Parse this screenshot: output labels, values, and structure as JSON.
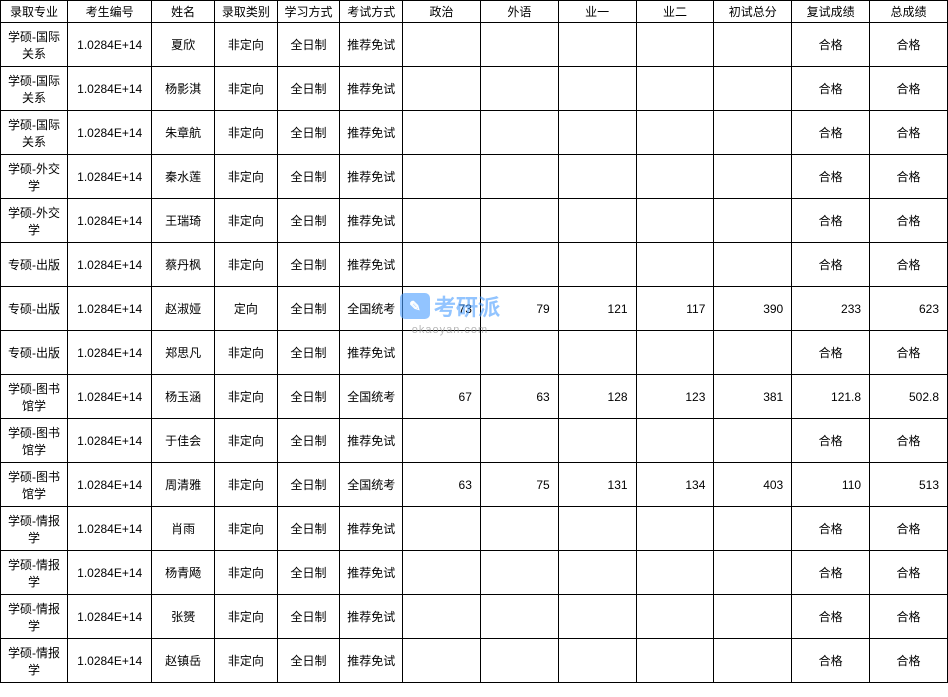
{
  "watermark": {
    "brand": "考研派",
    "url": "okaoyan.com"
  },
  "table": {
    "headers": [
      "录取专业",
      "考生编号",
      "姓名",
      "录取类别",
      "学习方式",
      "考试方式",
      "政治",
      "外语",
      "业一",
      "业二",
      "初试总分",
      "复试成绩",
      "总成绩"
    ],
    "rows": [
      {
        "major": "学硕-国际关系",
        "id": "1.0284E+14",
        "name": "夏欣",
        "category": "非定向",
        "study": "全日制",
        "exam": "推荐免试",
        "politics": "",
        "foreign": "",
        "sub1": "",
        "sub2": "",
        "initial": "",
        "retest": "合格",
        "total": "合格"
      },
      {
        "major": "学硕-国际关系",
        "id": "1.0284E+14",
        "name": "杨影淇",
        "category": "非定向",
        "study": "全日制",
        "exam": "推荐免试",
        "politics": "",
        "foreign": "",
        "sub1": "",
        "sub2": "",
        "initial": "",
        "retest": "合格",
        "total": "合格"
      },
      {
        "major": "学硕-国际关系",
        "id": "1.0284E+14",
        "name": "朱章航",
        "category": "非定向",
        "study": "全日制",
        "exam": "推荐免试",
        "politics": "",
        "foreign": "",
        "sub1": "",
        "sub2": "",
        "initial": "",
        "retest": "合格",
        "total": "合格"
      },
      {
        "major": "学硕-外交学",
        "id": "1.0284E+14",
        "name": "秦水莲",
        "category": "非定向",
        "study": "全日制",
        "exam": "推荐免试",
        "politics": "",
        "foreign": "",
        "sub1": "",
        "sub2": "",
        "initial": "",
        "retest": "合格",
        "total": "合格"
      },
      {
        "major": "学硕-外交学",
        "id": "1.0284E+14",
        "name": "王瑞琦",
        "category": "非定向",
        "study": "全日制",
        "exam": "推荐免试",
        "politics": "",
        "foreign": "",
        "sub1": "",
        "sub2": "",
        "initial": "",
        "retest": "合格",
        "total": "合格"
      },
      {
        "major": "专硕-出版",
        "id": "1.0284E+14",
        "name": "蔡丹枫",
        "category": "非定向",
        "study": "全日制",
        "exam": "推荐免试",
        "politics": "",
        "foreign": "",
        "sub1": "",
        "sub2": "",
        "initial": "",
        "retest": "合格",
        "total": "合格"
      },
      {
        "major": "专硕-出版",
        "id": "1.0284E+14",
        "name": "赵淑娅",
        "category": "定向",
        "study": "全日制",
        "exam": "全国统考",
        "politics": "73",
        "foreign": "79",
        "sub1": "121",
        "sub2": "117",
        "initial": "390",
        "retest": "233",
        "total": "623"
      },
      {
        "major": "专硕-出版",
        "id": "1.0284E+14",
        "name": "郑思凡",
        "category": "非定向",
        "study": "全日制",
        "exam": "推荐免试",
        "politics": "",
        "foreign": "",
        "sub1": "",
        "sub2": "",
        "initial": "",
        "retest": "合格",
        "total": "合格"
      },
      {
        "major": "学硕-图书馆学",
        "id": "1.0284E+14",
        "name": "杨玉涵",
        "category": "非定向",
        "study": "全日制",
        "exam": "全国统考",
        "politics": "67",
        "foreign": "63",
        "sub1": "128",
        "sub2": "123",
        "initial": "381",
        "retest": "121.8",
        "total": "502.8"
      },
      {
        "major": "学硕-图书馆学",
        "id": "1.0284E+14",
        "name": "于佳会",
        "category": "非定向",
        "study": "全日制",
        "exam": "推荐免试",
        "politics": "",
        "foreign": "",
        "sub1": "",
        "sub2": "",
        "initial": "",
        "retest": "合格",
        "total": "合格"
      },
      {
        "major": "学硕-图书馆学",
        "id": "1.0284E+14",
        "name": "周清雅",
        "category": "非定向",
        "study": "全日制",
        "exam": "全国统考",
        "politics": "63",
        "foreign": "75",
        "sub1": "131",
        "sub2": "134",
        "initial": "403",
        "retest": "110",
        "total": "513"
      },
      {
        "major": "学硕-情报学",
        "id": "1.0284E+14",
        "name": "肖雨",
        "category": "非定向",
        "study": "全日制",
        "exam": "推荐免试",
        "politics": "",
        "foreign": "",
        "sub1": "",
        "sub2": "",
        "initial": "",
        "retest": "合格",
        "total": "合格"
      },
      {
        "major": "学硕-情报学",
        "id": "1.0284E+14",
        "name": "杨青飏",
        "category": "非定向",
        "study": "全日制",
        "exam": "推荐免试",
        "politics": "",
        "foreign": "",
        "sub1": "",
        "sub2": "",
        "initial": "",
        "retest": "合格",
        "total": "合格"
      },
      {
        "major": "学硕-情报学",
        "id": "1.0284E+14",
        "name": "张赟",
        "category": "非定向",
        "study": "全日制",
        "exam": "推荐免试",
        "politics": "",
        "foreign": "",
        "sub1": "",
        "sub2": "",
        "initial": "",
        "retest": "合格",
        "total": "合格"
      },
      {
        "major": "学硕-情报学",
        "id": "1.0284E+14",
        "name": "赵镇岳",
        "category": "非定向",
        "study": "全日制",
        "exam": "推荐免试",
        "politics": "",
        "foreign": "",
        "sub1": "",
        "sub2": "",
        "initial": "",
        "retest": "合格",
        "total": "合格"
      }
    ]
  }
}
